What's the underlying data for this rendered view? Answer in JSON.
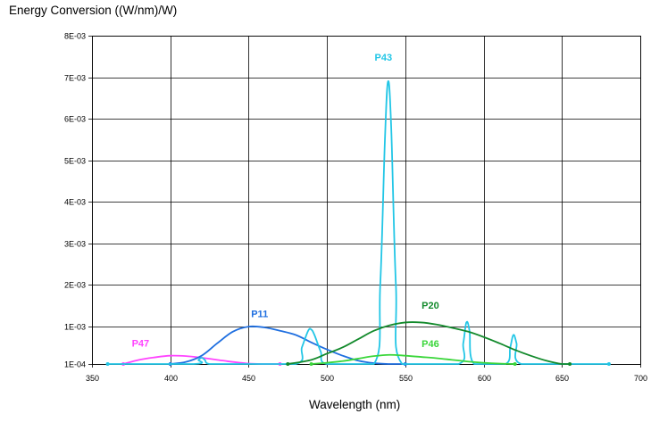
{
  "chart_data": {
    "type": "line",
    "title": "Energy Conversion ((W/nm)/W)",
    "xlabel": "Wavelength (nm)",
    "ylabel": "",
    "xlim": [
      350,
      700
    ],
    "ylim": [
      0.0001,
      0.008
    ],
    "x_ticks": [
      "350",
      "400",
      "450",
      "500",
      "550",
      "600",
      "650",
      "700"
    ],
    "y_ticks": [
      "1E-04",
      "1E-03",
      "2E-03",
      "3E-03",
      "4E-03",
      "5E-03",
      "6E-03",
      "7E-03",
      "8E-03"
    ],
    "grid": true,
    "legend": "none",
    "series": [
      {
        "name": "P47",
        "color": "#ff44ff",
        "x": [
          370,
          380,
          390,
          400,
          410,
          420,
          430,
          440,
          450,
          460,
          470
        ],
        "y": [
          0.0001,
          0.0002,
          0.00026,
          0.0003,
          0.00029,
          0.00025,
          0.0002,
          0.00015,
          0.00011,
          0.0001,
          0.0001
        ]
      },
      {
        "name": "P11",
        "color": "#1f6fe0",
        "x": [
          400,
          410,
          420,
          430,
          440,
          450,
          460,
          470,
          480,
          490,
          500,
          510,
          520,
          530,
          540,
          550
        ],
        "y": [
          0.0001,
          0.00015,
          0.0003,
          0.0006,
          0.00088,
          0.001,
          0.00098,
          0.0009,
          0.0008,
          0.00062,
          0.00045,
          0.0003,
          0.00018,
          0.00012,
          0.0001,
          0.0001
        ]
      },
      {
        "name": "P43",
        "color": "#22c6e6",
        "x": [
          360,
          415,
          418,
          420,
          422,
          425,
          440,
          480,
          484,
          488,
          490,
          492,
          496,
          500,
          530,
          534,
          537,
          539,
          541,
          544,
          548,
          584,
          587,
          589,
          591,
          594,
          614,
          617,
          619,
          621,
          624,
          660,
          680
        ],
        "y": [
          0.0001,
          0.0001,
          0.0002,
          0.00025,
          0.0002,
          0.0001,
          0.0001,
          0.0001,
          0.0005,
          0.0009,
          0.00093,
          0.0008,
          0.0004,
          0.0001,
          0.0001,
          0.002,
          0.0055,
          0.0069,
          0.0058,
          0.002,
          0.0001,
          0.0001,
          0.0006,
          0.0011,
          0.0009,
          0.0001,
          0.0001,
          0.0005,
          0.0008,
          0.0006,
          0.0001,
          0.0001,
          0.0001
        ]
      },
      {
        "name": "P20",
        "color": "#138a2c",
        "x": [
          475,
          490,
          500,
          510,
          520,
          530,
          540,
          550,
          560,
          570,
          580,
          590,
          600,
          610,
          620,
          630,
          640,
          650,
          655
        ],
        "y": [
          0.0001,
          0.0002,
          0.00035,
          0.0005,
          0.0007,
          0.0009,
          0.00103,
          0.0011,
          0.0011,
          0.00105,
          0.00097,
          0.00088,
          0.00075,
          0.0006,
          0.00044,
          0.0003,
          0.00018,
          0.0001,
          0.0001
        ]
      },
      {
        "name": "P46",
        "color": "#3ad63a",
        "x": [
          490,
          500,
          510,
          520,
          530,
          540,
          550,
          560,
          570,
          580,
          590,
          600,
          610,
          620
        ],
        "y": [
          0.0001,
          0.00013,
          0.00017,
          0.00023,
          0.00029,
          0.00032,
          0.0003,
          0.00027,
          0.00024,
          0.0002,
          0.00016,
          0.00013,
          0.00011,
          0.0001
        ]
      }
    ],
    "labels": [
      {
        "text": "P47",
        "x": 381,
        "y": 0.00052,
        "color": "#ff44ff"
      },
      {
        "text": "P11",
        "x": 457,
        "y": 0.00123,
        "color": "#1f6fe0"
      },
      {
        "text": "P43",
        "x": 536,
        "y": 0.0074,
        "color": "#22c6e6"
      },
      {
        "text": "P20",
        "x": 566,
        "y": 0.00143,
        "color": "#138a2c"
      },
      {
        "text": "P46",
        "x": 566,
        "y": 0.00051,
        "color": "#3ad63a"
      }
    ]
  }
}
